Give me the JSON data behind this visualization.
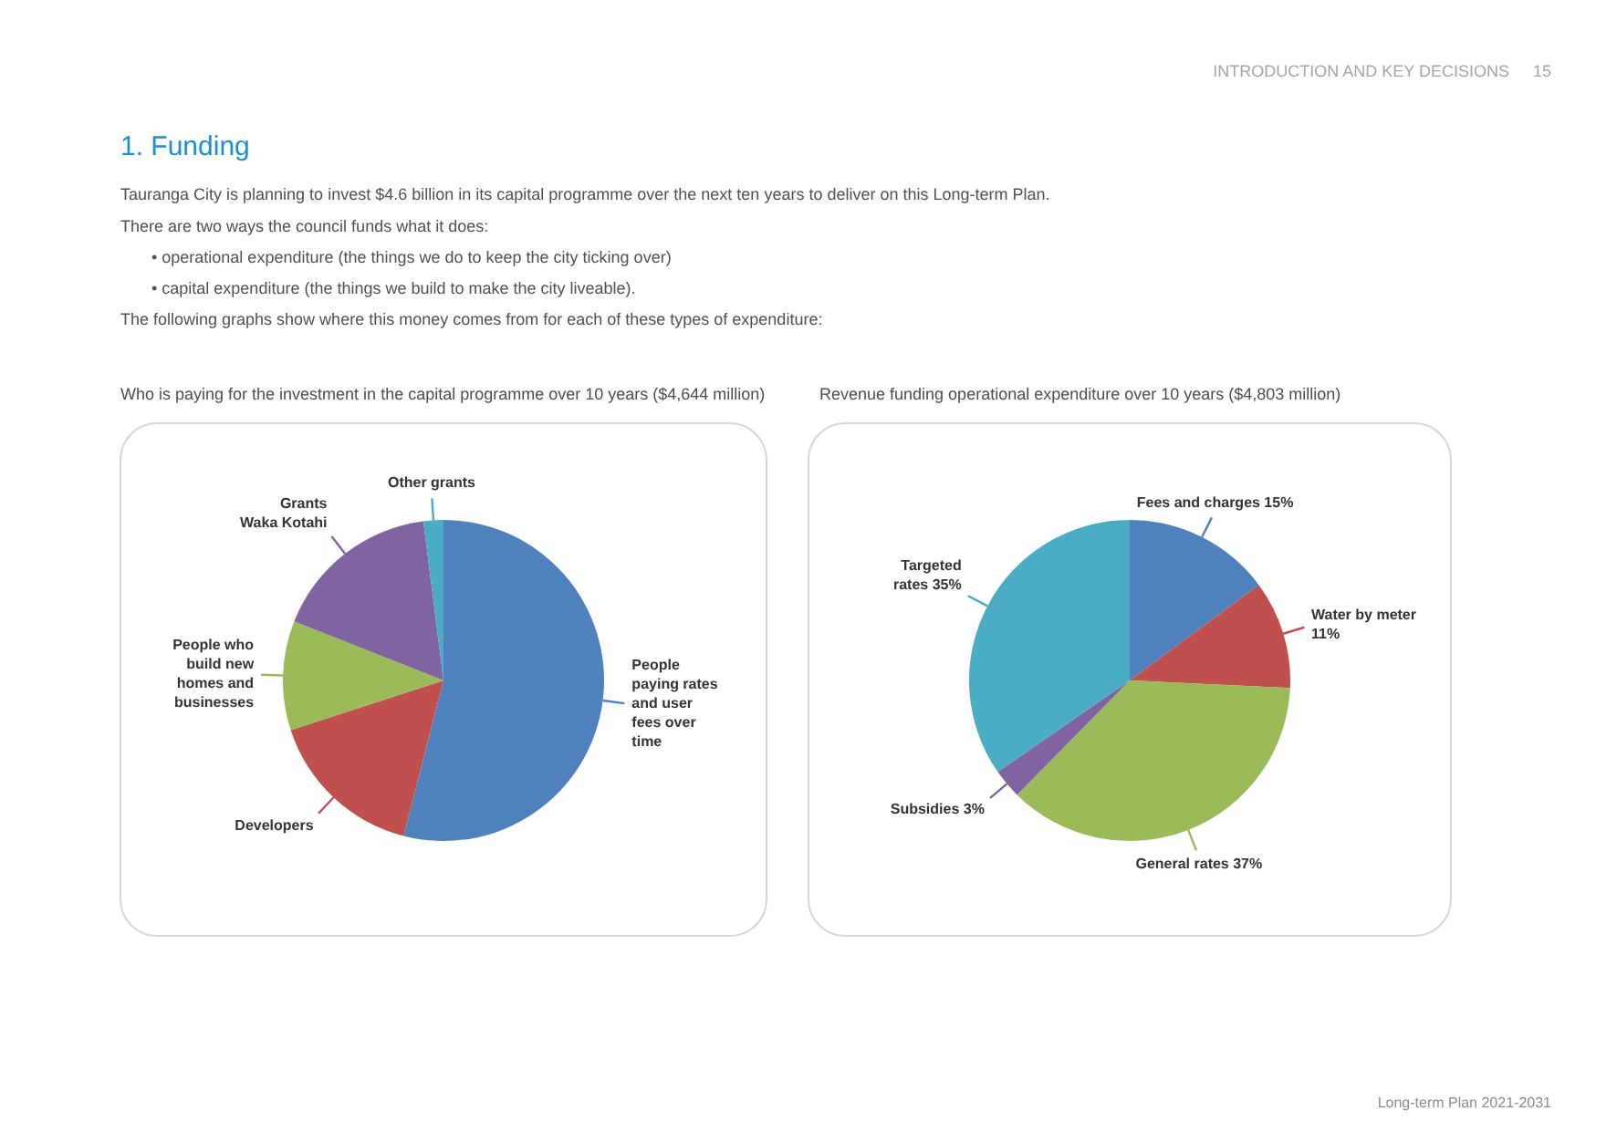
{
  "chart_data": [
    {
      "type": "pie",
      "title": "Who is paying for the investment in the capital programme over 10 years ($4,644 million)",
      "categories": [
        "People paying rates and user fees over time",
        "Developers",
        "People who build new homes and businesses",
        "Grants Waka Kotahi",
        "Other grants"
      ],
      "values": [
        54,
        16,
        11,
        17,
        2
      ],
      "colors": [
        "#4f81bd",
        "#c0504d",
        "#9bbb59",
        "#8064a2",
        "#4bacc6"
      ],
      "annotations": [
        "INTRODUCTION AND KEY DECISIONS",
        "15",
        "1. Funding",
        "Tauranga City is planning to invest $4.6 billion in its capital programme over the next ten years to deliver on this Long-term Plan.",
        "There are two ways the council funds what it does:",
        "• operational expenditure (the things we do to keep the city ticking over)",
        "• capital expenditure (the things we build to make the city liveable).",
        "The following graphs show where this money comes from for each of these types of expenditure:",
        "Long-term Plan 2021-2031"
      ]
    },
    {
      "type": "pie",
      "title": "Revenue funding operational expenditure over 10 years ($4,803 million)",
      "categories": [
        "Fees and charges",
        "Water by meter",
        "General rates",
        "Subsidies",
        "Targeted rates"
      ],
      "values": [
        15,
        11,
        37,
        3,
        35
      ],
      "value_labels": [
        "15%",
        "11%",
        "37%",
        "3%",
        "35%"
      ],
      "colors": [
        "#4f81bd",
        "#c0504d",
        "#9bbb59",
        "#8064a2",
        "#4bacc6"
      ]
    }
  ]
}
